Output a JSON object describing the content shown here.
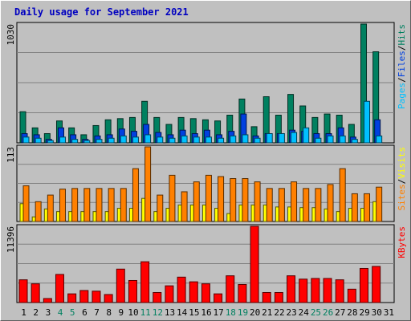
{
  "title": "Daily usage for September 2021",
  "colors": {
    "pages": "#00c0ff",
    "files": "#0040e0",
    "hits": "#008060",
    "sites": "#ff8000",
    "visits": "#ffff00",
    "kbytes": "#ff0000",
    "weekend": "#008060",
    "weekday": "#000000"
  },
  "chart_data": [
    {
      "type": "bar",
      "name": "hits-files-pages",
      "ymax_label": "1030",
      "ymax": 1030,
      "legend": {
        "pages": "Pages",
        "files": "Files",
        "hits": "Hits",
        "sep": "/"
      },
      "series": [
        {
          "name": "Hits",
          "values": [
            270,
            130,
            80,
            190,
            130,
            70,
            150,
            200,
            210,
            220,
            360,
            220,
            160,
            220,
            210,
            200,
            190,
            240,
            380,
            140,
            400,
            240,
            420,
            320,
            220,
            250,
            240,
            160,
            1030,
            790,
            0
          ]
        },
        {
          "name": "Files",
          "values": [
            80,
            70,
            30,
            130,
            70,
            30,
            60,
            70,
            120,
            100,
            160,
            90,
            70,
            110,
            80,
            110,
            70,
            100,
            250,
            60,
            80,
            80,
            110,
            100,
            80,
            80,
            130,
            50,
            0,
            200,
            0
          ]
        },
        {
          "name": "Pages",
          "values": [
            50,
            40,
            20,
            50,
            30,
            20,
            30,
            40,
            60,
            50,
            70,
            50,
            40,
            60,
            50,
            50,
            40,
            60,
            70,
            40,
            80,
            80,
            90,
            130,
            40,
            60,
            60,
            30,
            360,
            60,
            0
          ]
        }
      ]
    },
    {
      "type": "bar",
      "name": "visits-sites",
      "ymax_label": "113",
      "ymax": 113,
      "legend": {
        "sites": "Sites",
        "visits": "Visits",
        "sep": "/"
      },
      "series": [
        {
          "name": "Sites",
          "values": [
            54,
            30,
            40,
            49,
            50,
            50,
            50,
            50,
            50,
            80,
            113,
            40,
            70,
            45,
            60,
            70,
            68,
            65,
            65,
            60,
            50,
            50,
            60,
            50,
            50,
            56,
            80,
            42,
            42,
            52,
            0
          ]
        },
        {
          "name": "Visits",
          "values": [
            27,
            7,
            19,
            15,
            15,
            15,
            15,
            15,
            20,
            20,
            35,
            15,
            20,
            25,
            25,
            25,
            20,
            12,
            25,
            25,
            25,
            22,
            22,
            21,
            21,
            19,
            15,
            20,
            20,
            30,
            0
          ]
        }
      ]
    },
    {
      "type": "bar",
      "name": "kbytes",
      "ymax_label": "11396",
      "ymax": 11396,
      "legend": {
        "kbytes": "KBytes"
      },
      "series": [
        {
          "name": "KBytes",
          "values": [
            3400,
            2800,
            600,
            4200,
            1300,
            1800,
            1700,
            1200,
            5000,
            3300,
            6100,
            1500,
            2500,
            3800,
            3100,
            2800,
            1300,
            4000,
            2700,
            11396,
            1500,
            1500,
            4000,
            3500,
            3600,
            3600,
            3400,
            2000,
            5100,
            5400,
            0
          ]
        }
      ]
    }
  ],
  "x_labels": [
    "1",
    "2",
    "3",
    "4",
    "5",
    "6",
    "7",
    "8",
    "9",
    "10",
    "11",
    "12",
    "13",
    "14",
    "15",
    "16",
    "17",
    "18",
    "19",
    "20",
    "21",
    "22",
    "23",
    "24",
    "25",
    "26",
    "27",
    "28",
    "29",
    "30",
    "31"
  ],
  "weekend_days": [
    4,
    5,
    11,
    12,
    18,
    19,
    25,
    26
  ]
}
